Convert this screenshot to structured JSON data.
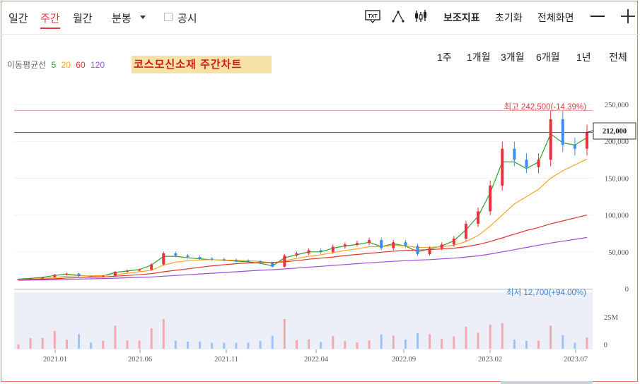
{
  "toolbar": {
    "tabs": [
      "일간",
      "주간",
      "월간",
      "분봉"
    ],
    "active_tab": "주간",
    "notice_label": "공시",
    "aux_indicator_label": "보조지표",
    "reset_label": "초기화",
    "fullscreen_label": "전체화면",
    "txt_icon_label": "TXT",
    "icons": [
      "txt-icon",
      "drawing-tool-icon",
      "candle-settings-icon",
      "minus-icon",
      "plus-icon"
    ]
  },
  "legend": {
    "label": "이동평균선",
    "items": [
      {
        "period": "5",
        "color": "#2ca02c"
      },
      {
        "period": "20",
        "color": "#f5a623"
      },
      {
        "period": "60",
        "color": "#e0352b"
      },
      {
        "period": "120",
        "color": "#9b4dd8"
      }
    ]
  },
  "periods": [
    "1주",
    "1개월",
    "3개월",
    "6개월",
    "1년",
    "전체"
  ],
  "colors": {
    "up": "#e8333c",
    "down": "#3d8cf0",
    "accent": "#e6343d"
  },
  "chart_data": {
    "type": "candlestick",
    "title": "코스모신소재 주간차트",
    "x_tick_labels": [
      "2021.01",
      "2021.06",
      "2021.11",
      "2022.04",
      "2022.09",
      "2023.02",
      "2023.07"
    ],
    "y_tick_labels": [
      "250,000",
      "200,000",
      "150,000",
      "100,000",
      "50,000",
      "0"
    ],
    "ylim": [
      0,
      250000
    ],
    "volume_tick_labels": [
      "25M",
      "0"
    ],
    "current_price": 212000,
    "current_price_label": "212,000",
    "max_label": "최고 242,500(-14.39%)",
    "min_label": "최저 12,700(+94.00%)",
    "max": 242500,
    "min": 12700,
    "close_series": [
      12700,
      14000,
      15500,
      19000,
      20500,
      17000,
      16500,
      17500,
      23000,
      24500,
      26000,
      33000,
      48000,
      45000,
      43000,
      41000,
      40000,
      39000,
      38000,
      37000,
      35000,
      30000,
      45000,
      48000,
      52000,
      50000,
      57000,
      60000,
      62000,
      66000,
      55000,
      63000,
      58000,
      47000,
      55000,
      60000,
      68000,
      88000,
      105000,
      140000,
      190000,
      175000,
      165000,
      175000,
      230000,
      195000,
      190000,
      212000
    ],
    "ma_series": [
      {
        "name": "5",
        "values": [
          13000,
          14000,
          15500,
          18000,
          20000,
          18000,
          17000,
          17500,
          22000,
          24000,
          26000,
          32000,
          44000,
          44000,
          42000,
          40500,
          39500,
          38500,
          37500,
          36500,
          34500,
          31000,
          42000,
          46000,
          50000,
          50000,
          55000,
          58000,
          60000,
          63000,
          57000,
          61000,
          58000,
          50000,
          54000,
          58000,
          65000,
          80000,
          98000,
          130000,
          172000,
          172000,
          163000,
          172000,
          210000,
          198000,
          195000,
          205000
        ]
      },
      {
        "name": "20",
        "values": [
          12500,
          13000,
          14000,
          15500,
          17000,
          17500,
          17500,
          18000,
          19000,
          21000,
          23000,
          25000,
          32000,
          36000,
          38000,
          39000,
          39500,
          39000,
          38500,
          38000,
          37000,
          35000,
          38000,
          41000,
          44000,
          46000,
          49000,
          52000,
          54000,
          57000,
          57000,
          59000,
          58000,
          56000,
          56000,
          57000,
          59000,
          64000,
          72000,
          85000,
          100000,
          115000,
          125000,
          135000,
          150000,
          160000,
          168000,
          176000
        ]
      },
      {
        "name": "60",
        "values": [
          12000,
          12500,
          13000,
          13500,
          14500,
          15000,
          15500,
          16000,
          17000,
          18000,
          19000,
          20500,
          23000,
          25000,
          27000,
          29000,
          31000,
          32500,
          34000,
          35000,
          35500,
          35500,
          36500,
          38000,
          40000,
          41500,
          43000,
          45000,
          46500,
          48000,
          49500,
          51000,
          52000,
          52500,
          53000,
          54000,
          55000,
          57000,
          60000,
          64000,
          69000,
          74000,
          79000,
          83000,
          88000,
          92000,
          96000,
          100000
        ]
      },
      {
        "name": "120",
        "values": [
          11500,
          11700,
          12000,
          12300,
          12700,
          13000,
          13400,
          13800,
          14300,
          14800,
          15400,
          16000,
          17000,
          18000,
          19000,
          20000,
          21000,
          22000,
          23000,
          24000,
          25000,
          25800,
          26800,
          28000,
          29200,
          30400,
          31600,
          32800,
          34000,
          35200,
          36200,
          37200,
          38000,
          38800,
          39500,
          40500,
          41500,
          43000,
          44500,
          47000,
          50000,
          53000,
          56000,
          59000,
          62000,
          64500,
          67000,
          69500
        ]
      }
    ]
  }
}
